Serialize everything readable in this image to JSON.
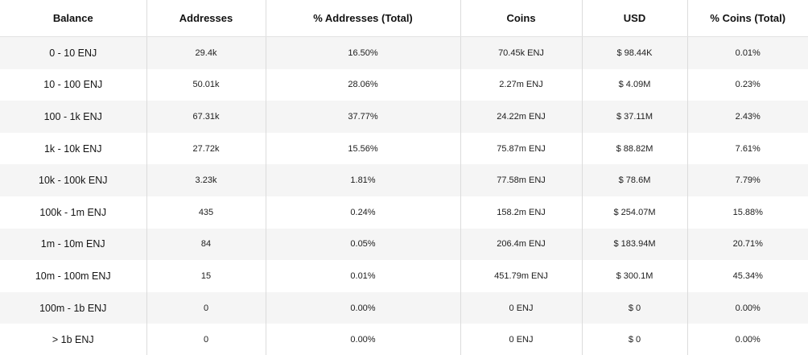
{
  "table": {
    "headers": [
      "Balance",
      "Addresses",
      "% Addresses (Total)",
      "Coins",
      "USD",
      "% Coins (Total)"
    ],
    "rows": [
      [
        "0 - 10 ENJ",
        "29.4k",
        "16.50%",
        "70.45k ENJ",
        "$ 98.44K",
        "0.01%"
      ],
      [
        "10 - 100 ENJ",
        "50.01k",
        "28.06%",
        "2.27m ENJ",
        "$ 4.09M",
        "0.23%"
      ],
      [
        "100 - 1k ENJ",
        "67.31k",
        "37.77%",
        "24.22m ENJ",
        "$ 37.11M",
        "2.43%"
      ],
      [
        "1k - 10k ENJ",
        "27.72k",
        "15.56%",
        "75.87m ENJ",
        "$ 88.82M",
        "7.61%"
      ],
      [
        "10k - 100k ENJ",
        "3.23k",
        "1.81%",
        "77.58m ENJ",
        "$ 78.6M",
        "7.79%"
      ],
      [
        "100k - 1m ENJ",
        "435",
        "0.24%",
        "158.2m ENJ",
        "$ 254.07M",
        "15.88%"
      ],
      [
        "1m - 10m ENJ",
        "84",
        "0.05%",
        "206.4m ENJ",
        "$ 183.94M",
        "20.71%"
      ],
      [
        "10m - 100m ENJ",
        "15",
        "0.01%",
        "451.79m ENJ",
        "$ 300.1M",
        "45.34%"
      ],
      [
        "100m - 1b ENJ",
        "0",
        "0.00%",
        "0 ENJ",
        "$ 0",
        "0.00%"
      ],
      [
        "> 1b ENJ",
        "0",
        "0.00%",
        "0 ENJ",
        "$ 0",
        "0.00%"
      ]
    ]
  }
}
